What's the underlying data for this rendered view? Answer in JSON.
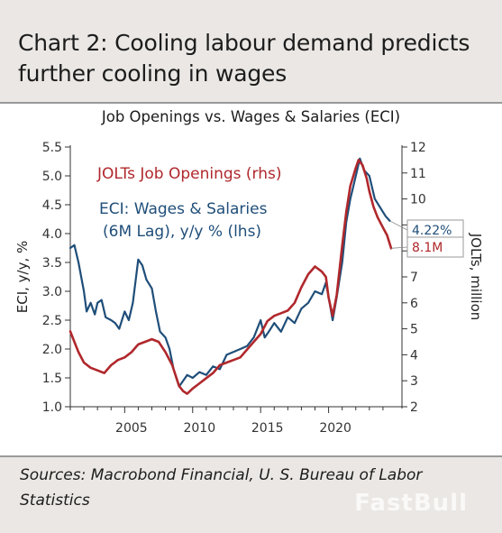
{
  "header": {
    "title": "Chart 2: Cooling labour demand predicts further cooling in wages"
  },
  "footer": {
    "sources": "Sources: Macrobond Financial, U. S. Bureau of Labor Statistics",
    "watermark": "FastBull"
  },
  "chart_data": {
    "type": "line",
    "title": "Job Openings vs. Wages & Salaries (ECI)",
    "ylabel_left": "ECI, y/y, %",
    "ylabel_right": "JOLTs, million",
    "ylim_left": [
      1.0,
      5.5
    ],
    "ylim_right": [
      2,
      12
    ],
    "yticks_left": [
      "1.0",
      "1.5",
      "2.0",
      "2.5",
      "3.0",
      "3.5",
      "4.0",
      "4.5",
      "5.0",
      "5.5"
    ],
    "yticks_right": [
      "2",
      "3",
      "4",
      "5",
      "6",
      "7",
      "8",
      "9",
      "10",
      "11",
      "12"
    ],
    "xlim": [
      2001.0,
      2024.8
    ],
    "xticks": [
      "2005",
      "2010",
      "2015",
      "2020"
    ],
    "grid": false,
    "series": [
      {
        "name": "ECI: Wages & Salaries (6M Lag), y/y % (lhs)",
        "axis": "left",
        "color": "#1f4e79",
        "end_label": "4.22%",
        "x": [
          2001.0,
          2001.3,
          2001.6,
          2002.0,
          2002.2,
          2002.5,
          2002.8,
          2003.0,
          2003.3,
          2003.6,
          2004.0,
          2004.3,
          2004.6,
          2005.0,
          2005.3,
          2005.6,
          2006.0,
          2006.3,
          2006.6,
          2007.0,
          2007.3,
          2007.6,
          2008.0,
          2008.3,
          2008.6,
          2009.0,
          2009.3,
          2009.6,
          2010.0,
          2010.5,
          2011.0,
          2011.5,
          2012.0,
          2012.5,
          2013.0,
          2013.5,
          2014.0,
          2014.5,
          2015.0,
          2015.3,
          2015.6,
          2016.0,
          2016.5,
          2017.0,
          2017.5,
          2018.0,
          2018.5,
          2019.0,
          2019.5,
          2019.8,
          2020.0,
          2020.3,
          2020.6,
          2021.0,
          2021.3,
          2021.6,
          2022.0,
          2022.3,
          2022.6,
          2023.0,
          2023.4,
          2023.8,
          2024.2,
          2024.5
        ],
        "values": [
          3.75,
          3.8,
          3.5,
          3.0,
          2.65,
          2.8,
          2.6,
          2.8,
          2.85,
          2.55,
          2.5,
          2.45,
          2.35,
          2.65,
          2.5,
          2.8,
          3.55,
          3.45,
          3.2,
          3.05,
          2.65,
          2.3,
          2.2,
          2.0,
          1.65,
          1.35,
          1.45,
          1.55,
          1.5,
          1.6,
          1.55,
          1.7,
          1.65,
          1.9,
          1.95,
          2.0,
          2.05,
          2.2,
          2.5,
          2.2,
          2.3,
          2.45,
          2.3,
          2.55,
          2.45,
          2.7,
          2.8,
          3.0,
          2.95,
          3.15,
          2.9,
          2.5,
          2.9,
          3.5,
          4.2,
          4.6,
          5.0,
          5.3,
          5.1,
          5.0,
          4.6,
          4.45,
          4.3,
          4.22
        ]
      },
      {
        "name": "JOLTs Job Openings (rhs)",
        "axis": "right",
        "color": "#b0282c",
        "end_label": "8.1M",
        "x": [
          2001.0,
          2001.3,
          2001.6,
          2002.0,
          2002.5,
          2003.0,
          2003.5,
          2004.0,
          2004.5,
          2005.0,
          2005.5,
          2006.0,
          2006.5,
          2007.0,
          2007.5,
          2008.0,
          2008.5,
          2009.0,
          2009.3,
          2009.6,
          2010.0,
          2010.5,
          2011.0,
          2011.5,
          2012.0,
          2012.5,
          2013.0,
          2013.5,
          2014.0,
          2014.5,
          2015.0,
          2015.5,
          2016.0,
          2016.5,
          2017.0,
          2017.5,
          2018.0,
          2018.5,
          2019.0,
          2019.5,
          2019.8,
          2020.0,
          2020.3,
          2020.6,
          2021.0,
          2021.3,
          2021.6,
          2022.0,
          2022.2,
          2022.5,
          2022.8,
          2023.0,
          2023.3,
          2023.6,
          2024.0,
          2024.3,
          2024.6
        ],
        "values": [
          4.9,
          4.5,
          4.1,
          3.7,
          3.5,
          3.4,
          3.3,
          3.6,
          3.8,
          3.9,
          4.1,
          4.4,
          4.5,
          4.6,
          4.5,
          4.1,
          3.6,
          2.8,
          2.6,
          2.5,
          2.7,
          2.9,
          3.1,
          3.3,
          3.6,
          3.7,
          3.8,
          3.9,
          4.2,
          4.5,
          4.8,
          5.3,
          5.5,
          5.6,
          5.7,
          6.0,
          6.6,
          7.1,
          7.4,
          7.2,
          7.0,
          6.2,
          5.5,
          6.3,
          8.2,
          9.5,
          10.5,
          11.2,
          11.5,
          11.3,
          10.8,
          10.3,
          9.7,
          9.3,
          8.9,
          8.6,
          8.1
        ]
      }
    ],
    "annotations": [
      {
        "text": "JOLTs Job Openings (rhs)",
        "color": "#b0282c"
      },
      {
        "text": "ECI: Wages & Salaries",
        "color": "#1f4e79"
      },
      {
        "text": "(6M Lag), y/y % (lhs)",
        "color": "#1f4e79"
      }
    ]
  }
}
